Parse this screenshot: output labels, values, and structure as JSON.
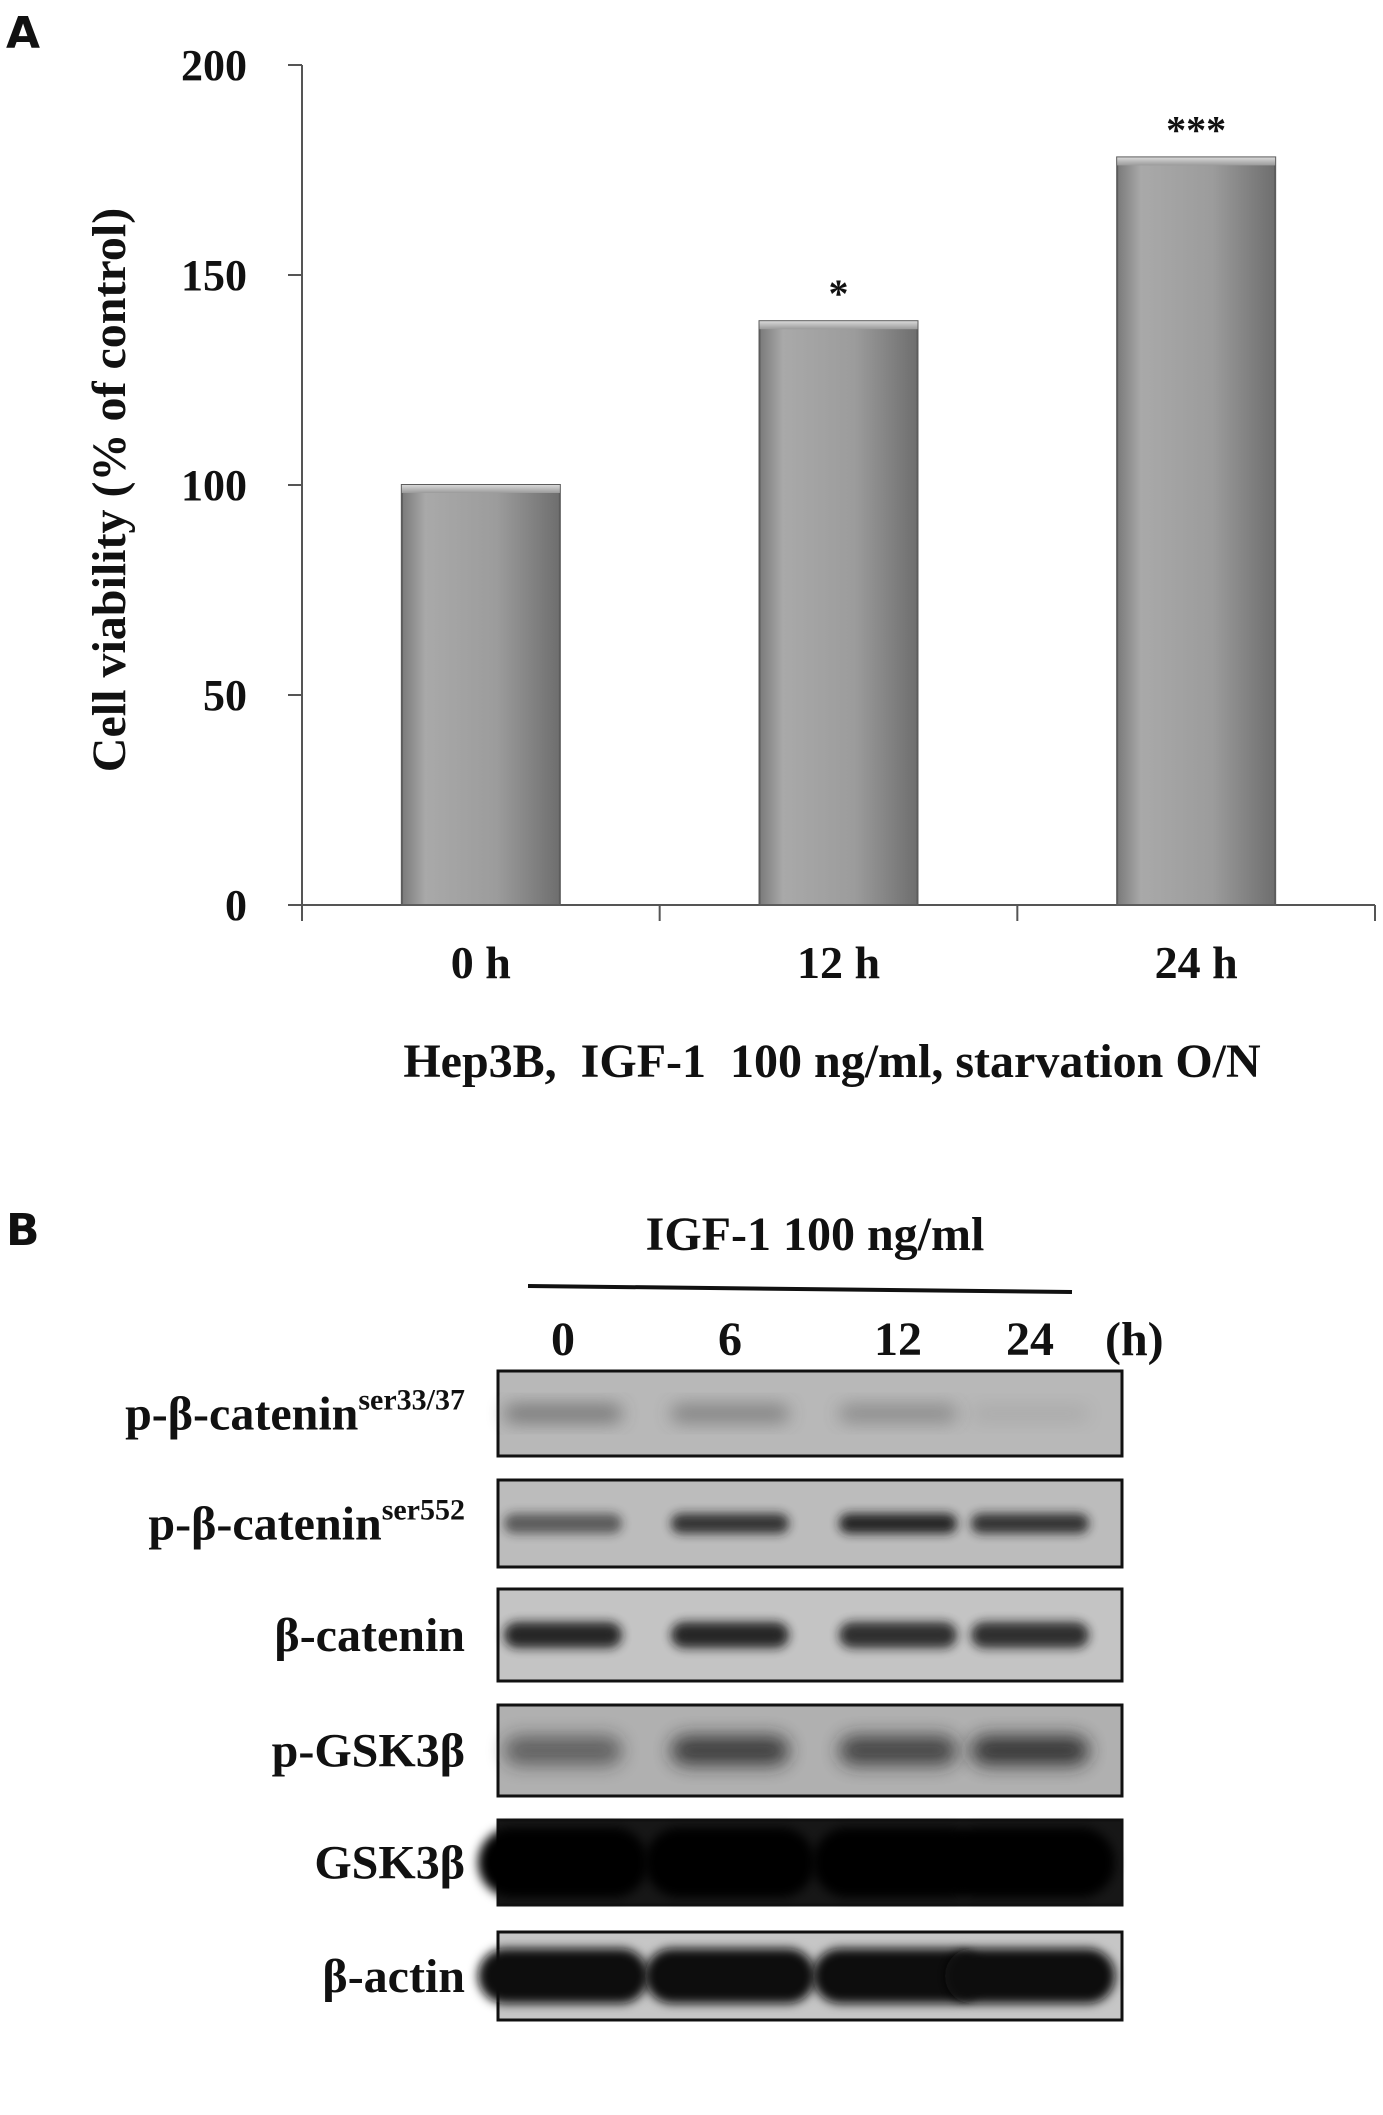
{
  "panels": {
    "a": "A",
    "b": "B"
  },
  "chart_data": {
    "type": "bar",
    "title": "",
    "xlabel": "Hep3B,  IGF-1  100 ng/ml, starvation O/N",
    "ylabel": "Cell viability (% of control)",
    "categories": [
      "0 h",
      "12 h",
      "24 h"
    ],
    "values": [
      100,
      139,
      178
    ],
    "annotations": [
      "",
      "*",
      "***"
    ],
    "ylim": [
      0,
      200
    ],
    "yticks": [
      0,
      50,
      100,
      150,
      200
    ],
    "bar_color": "#9a9a9a",
    "grid": false,
    "legend": "none"
  },
  "blot": {
    "treatment": "IGF-1 100 ng/ml",
    "timepoints": [
      "0",
      "6",
      "12",
      "24"
    ],
    "time_unit": "(h)",
    "rows": [
      {
        "label": "p-β-catenin",
        "sup": "ser33/37"
      },
      {
        "label": "p-β-catenin",
        "sup": "ser552"
      },
      {
        "label": "β-catenin",
        "sup": ""
      },
      {
        "label": "p-GSK3β",
        "sup": ""
      },
      {
        "label": "GSK3β",
        "sup": ""
      },
      {
        "label": "β-actin",
        "sup": ""
      }
    ]
  }
}
